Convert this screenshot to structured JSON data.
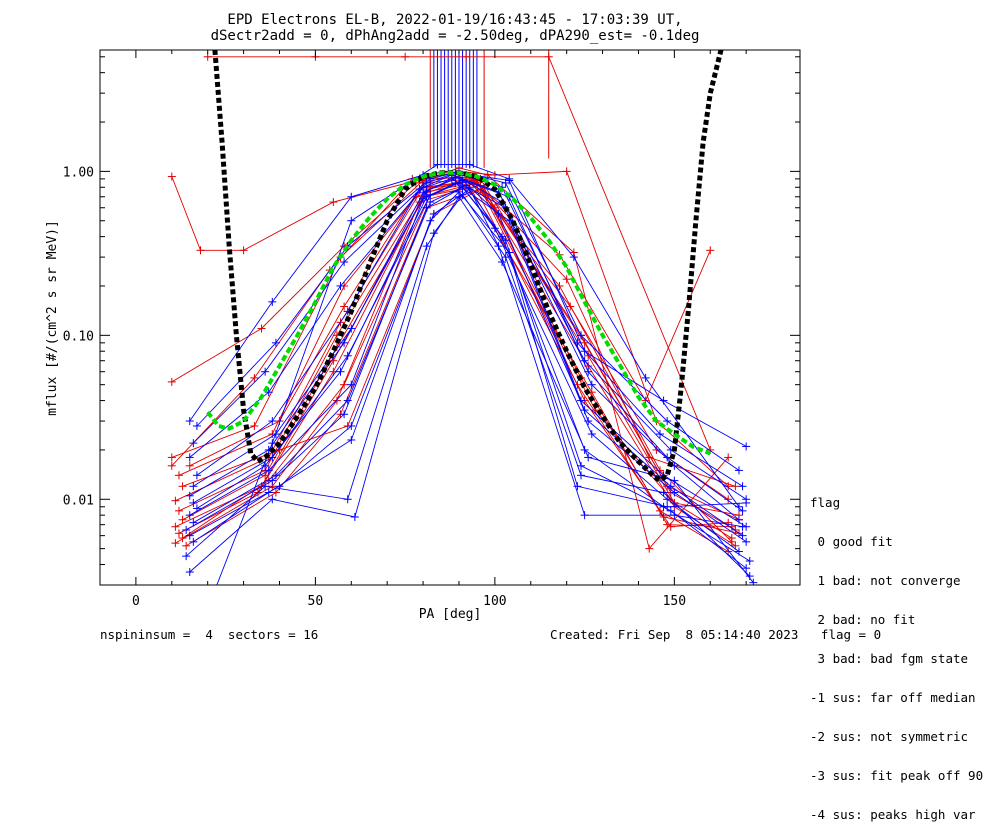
{
  "chart_data": {
    "type": "line",
    "title_line1": "EPD Electrons EL-B, 2022-01-19/16:43:45 - 17:03:39 UT,",
    "title_line2": "dSectr2add = 0, dPhAng2add = -2.50deg, dPA290_est=  -0.1deg",
    "xlabel": "PA [deg]",
    "ylabel": "mflux [#/(cm^2 s sr MeV)]",
    "xlim": [
      -10,
      185
    ],
    "ylim": [
      0.003,
      5.5
    ],
    "yscale": "log",
    "x_ticks": [
      0,
      50,
      100,
      150
    ],
    "x_tick_labels": [
      "0",
      "50",
      "100",
      "150"
    ],
    "y_ticks": [
      0.01,
      0.1,
      1.0
    ],
    "y_tick_labels": [
      "0.01",
      "0.10",
      "1.00"
    ],
    "series_colors": {
      "red": "#e00000",
      "blue": "#0000ff",
      "fit_black": "#000000",
      "fit_green": "#00dd00"
    },
    "fit_black": {
      "x": [
        22,
        24,
        26,
        28,
        30,
        32,
        34,
        36,
        40,
        45,
        50,
        55,
        60,
        65,
        70,
        75,
        80,
        85,
        90,
        95,
        100,
        105,
        110,
        115,
        120,
        125,
        130,
        135,
        140,
        144,
        146,
        148,
        150,
        152,
        154,
        156,
        158,
        160,
        163
      ],
      "y": [
        5.5,
        1.5,
        0.35,
        0.1,
        0.035,
        0.019,
        0.017,
        0.018,
        0.022,
        0.032,
        0.048,
        0.08,
        0.14,
        0.27,
        0.5,
        0.78,
        0.93,
        0.98,
        0.98,
        0.93,
        0.78,
        0.5,
        0.27,
        0.14,
        0.08,
        0.048,
        0.032,
        0.022,
        0.017,
        0.014,
        0.013,
        0.014,
        0.02,
        0.05,
        0.15,
        0.5,
        1.5,
        3.0,
        5.5
      ]
    },
    "fit_green": {
      "x": [
        20,
        23,
        26,
        30,
        35,
        40,
        45,
        50,
        55,
        60,
        65,
        70,
        75,
        80,
        85,
        90,
        95,
        100,
        105,
        110,
        115,
        120,
        125,
        130,
        135,
        140,
        145,
        150,
        155,
        160
      ],
      "y": [
        0.034,
        0.028,
        0.027,
        0.03,
        0.042,
        0.065,
        0.1,
        0.16,
        0.26,
        0.38,
        0.52,
        0.68,
        0.83,
        0.93,
        0.98,
        0.98,
        0.93,
        0.83,
        0.68,
        0.52,
        0.38,
        0.26,
        0.16,
        0.1,
        0.065,
        0.042,
        0.03,
        0.025,
        0.021,
        0.019
      ]
    },
    "spikes": {
      "blue_x": [
        83,
        84,
        85,
        86,
        87,
        88,
        89,
        90,
        91,
        92,
        93,
        94,
        95
      ],
      "red_x": [
        82,
        97
      ],
      "y_bottom": 1.05,
      "y_top": 5.5,
      "red_isolated": [
        {
          "x": 115,
          "y_bottom": 1.2,
          "y_top": 5.5
        }
      ]
    },
    "series": [
      {
        "color": "red",
        "x": [
          10,
          18,
          30,
          55,
          80,
          90,
          100,
          120,
          145,
          165
        ],
        "y": [
          0.93,
          0.33,
          0.33,
          0.65,
          0.9,
          1.0,
          0.95,
          1.0,
          0.03,
          0.012
        ]
      },
      {
        "color": "red",
        "x": [
          10,
          35,
          58,
          78,
          92,
          118,
          142,
          160
        ],
        "y": [
          0.052,
          0.11,
          0.35,
          0.85,
          0.95,
          0.31,
          0.04,
          0.33
        ]
      },
      {
        "color": "red",
        "x": [
          20,
          50,
          75,
          92,
          115,
          160
        ],
        "y": [
          5.0,
          5.0,
          5.0,
          5.0,
          5.0,
          0.02
        ]
      },
      {
        "color": "red",
        "x": [
          10,
          33,
          57,
          80,
          90,
          98,
          122,
          143,
          165
        ],
        "y": [
          0.018,
          0.028,
          0.3,
          0.88,
          1.05,
          0.95,
          0.32,
          0.005,
          0.018
        ]
      },
      {
        "color": "red",
        "x": [
          12,
          38,
          58,
          78,
          92,
          100,
          118,
          146,
          166
        ],
        "y": [
          0.014,
          0.025,
          0.2,
          0.7,
          0.9,
          0.6,
          0.2,
          0.015,
          0.0055
        ]
      },
      {
        "color": "red",
        "x": [
          11,
          37,
          57,
          80,
          95,
          124,
          148,
          168
        ],
        "y": [
          0.0098,
          0.018,
          0.12,
          0.8,
          0.88,
          0.1,
          0.012,
          0.0075
        ]
      },
      {
        "color": "red",
        "x": [
          12,
          36,
          56,
          81,
          95,
          125,
          149,
          167
        ],
        "y": [
          0.0085,
          0.015,
          0.1,
          0.78,
          0.88,
          0.09,
          0.011,
          0.0065
        ]
      },
      {
        "color": "red",
        "x": [
          13,
          36,
          56,
          82,
          96,
          126,
          150,
          166
        ],
        "y": [
          0.0075,
          0.014,
          0.085,
          0.8,
          0.9,
          0.075,
          0.0095,
          0.0058
        ]
      },
      {
        "color": "red",
        "x": [
          11,
          35,
          55,
          81,
          95,
          126,
          150,
          167
        ],
        "y": [
          0.0068,
          0.012,
          0.07,
          0.75,
          0.86,
          0.065,
          0.009,
          0.0052
        ]
      },
      {
        "color": "red",
        "x": [
          12,
          34,
          55,
          80,
          96,
          124,
          146,
          165
        ],
        "y": [
          0.0062,
          0.011,
          0.06,
          0.7,
          0.82,
          0.055,
          0.0085,
          0.0048
        ]
      },
      {
        "color": "red",
        "x": [
          13,
          37,
          58,
          82,
          94,
          123,
          147,
          168
        ],
        "y": [
          0.0058,
          0.013,
          0.05,
          0.72,
          0.84,
          0.05,
          0.0078,
          0.0062
        ]
      },
      {
        "color": "red",
        "x": [
          11,
          38,
          56,
          79,
          93,
          127,
          148,
          166
        ],
        "y": [
          0.0054,
          0.012,
          0.04,
          0.65,
          0.8,
          0.045,
          0.007,
          0.0068
        ]
      },
      {
        "color": "red",
        "x": [
          14,
          39,
          57,
          81,
          97,
          125,
          149,
          165
        ],
        "y": [
          0.0052,
          0.011,
          0.033,
          0.6,
          0.8,
          0.04,
          0.0068,
          0.0072
        ]
      },
      {
        "color": "red",
        "x": [
          13,
          40,
          59,
          83,
          96,
          128,
          150,
          168
        ],
        "y": [
          0.012,
          0.02,
          0.028,
          0.55,
          0.78,
          0.035,
          0.0095,
          0.008
        ]
      },
      {
        "color": "red",
        "x": [
          15,
          40,
          58,
          80,
          94,
          120,
          143,
          167
        ],
        "y": [
          0.016,
          0.03,
          0.15,
          0.85,
          0.9,
          0.22,
          0.018,
          0.012
        ]
      },
      {
        "color": "red",
        "x": [
          10,
          33,
          54,
          77,
          93,
          121,
          145,
          165
        ],
        "y": [
          0.016,
          0.055,
          0.25,
          0.9,
          0.92,
          0.15,
          0.02,
          0.01
        ]
      },
      {
        "color": "blue",
        "x": [
          15,
          38,
          60,
          80,
          87,
          104,
          125,
          147,
          170
        ],
        "y": [
          0.03,
          0.16,
          0.7,
          0.95,
          1.0,
          0.88,
          0.08,
          0.04,
          0.021
        ]
      },
      {
        "color": "blue",
        "x": [
          17,
          39,
          59,
          82,
          90,
          103,
          124,
          148,
          168
        ],
        "y": [
          0.028,
          0.09,
          0.35,
          0.9,
          1.0,
          0.85,
          0.1,
          0.03,
          0.015
        ]
      },
      {
        "color": "blue",
        "x": [
          16,
          36,
          58,
          81,
          89,
          102,
          123,
          146,
          169
        ],
        "y": [
          0.022,
          0.06,
          0.28,
          0.85,
          0.98,
          0.8,
          0.09,
          0.025,
          0.012
        ]
      },
      {
        "color": "blue",
        "x": [
          15,
          37,
          57,
          80,
          88,
          101,
          125,
          149,
          170
        ],
        "y": [
          0.018,
          0.045,
          0.2,
          0.8,
          0.95,
          0.75,
          0.07,
          0.02,
          0.01
        ]
      },
      {
        "color": "blue",
        "x": [
          17,
          38,
          59,
          79,
          89,
          104,
          126,
          148,
          169
        ],
        "y": [
          0.014,
          0.03,
          0.14,
          0.78,
          0.92,
          0.7,
          0.06,
          0.018,
          0.0085
        ]
      },
      {
        "color": "blue",
        "x": [
          16,
          39,
          60,
          81,
          90,
          102,
          127,
          150,
          168
        ],
        "y": [
          0.012,
          0.025,
          0.11,
          0.76,
          0.92,
          0.65,
          0.05,
          0.016,
          0.0075
        ]
      },
      {
        "color": "blue",
        "x": [
          15,
          37,
          58,
          80,
          88,
          103,
          124,
          147,
          170
        ],
        "y": [
          0.0105,
          0.02,
          0.09,
          0.74,
          0.9,
          0.6,
          0.04,
          0.014,
          0.0068
        ]
      },
      {
        "color": "blue",
        "x": [
          16,
          38,
          59,
          82,
          91,
          101,
          125,
          149,
          169
        ],
        "y": [
          0.0095,
          0.018,
          0.075,
          0.72,
          0.88,
          0.55,
          0.035,
          0.012,
          0.006
        ]
      },
      {
        "color": "blue",
        "x": [
          17,
          36,
          57,
          81,
          89,
          104,
          126,
          150,
          170
        ],
        "y": [
          0.0088,
          0.016,
          0.06,
          0.7,
          0.85,
          0.5,
          0.03,
          0.011,
          0.0055
        ]
      },
      {
        "color": "blue",
        "x": [
          15,
          37,
          60,
          80,
          90,
          100,
          127,
          148,
          168
        ],
        "y": [
          0.008,
          0.015,
          0.05,
          0.68,
          0.85,
          0.45,
          0.025,
          0.01,
          0.0048
        ]
      },
      {
        "color": "blue",
        "x": [
          16,
          39,
          59,
          82,
          92,
          102,
          125,
          147,
          171
        ],
        "y": [
          0.0072,
          0.014,
          0.04,
          0.65,
          0.82,
          0.4,
          0.02,
          0.009,
          0.0042
        ]
      },
      {
        "color": "blue",
        "x": [
          14,
          38,
          58,
          81,
          91,
          103,
          124,
          149,
          170
        ],
        "y": [
          0.0065,
          0.013,
          0.033,
          0.6,
          0.8,
          0.38,
          0.016,
          0.0085,
          0.0038
        ]
      },
      {
        "color": "blue",
        "x": [
          15,
          40,
          60,
          83,
          93,
          101,
          125,
          150,
          169
        ],
        "y": [
          0.006,
          0.012,
          0.028,
          0.55,
          0.78,
          0.35,
          0.008,
          0.008,
          0.0068
        ]
      },
      {
        "color": "blue",
        "x": [
          16,
          37,
          60,
          82,
          90,
          104,
          123,
          148,
          170
        ],
        "y": [
          0.0055,
          0.011,
          0.023,
          0.5,
          0.75,
          0.32,
          0.012,
          0.009,
          0.0095
        ]
      },
      {
        "color": "blue",
        "x": [
          15,
          38,
          61,
          83,
          91,
          103,
          124,
          147,
          171
        ],
        "y": [
          0.0036,
          0.01,
          0.0078,
          0.42,
          0.72,
          0.3,
          0.014,
          0.011,
          0.0034
        ]
      },
      {
        "color": "blue",
        "x": [
          14,
          36,
          59,
          81,
          90,
          102,
          126,
          150,
          172
        ],
        "y": [
          0.0045,
          0.012,
          0.01,
          0.35,
          0.7,
          0.28,
          0.018,
          0.013,
          0.0031
        ]
      },
      {
        "color": "blue",
        "x": [
          22,
          38,
          60,
          84,
          93,
          104,
          122,
          142,
          168
        ],
        "y": [
          0.0028,
          0.022,
          0.5,
          1.1,
          1.1,
          0.9,
          0.3,
          0.055,
          0.009
        ]
      }
    ]
  },
  "legend": {
    "title": "flag",
    "items": [
      " 0 good fit",
      " 1 bad: not converge",
      " 2 bad: no fit",
      " 3 bad: bad fgm state",
      "-1 sus: far off median",
      "-2 sus: not symmetric",
      "-3 sus: fit peak off 90",
      "-4 sus: peaks high var"
    ]
  },
  "footer": {
    "left": "nspininsum =  4  sectors = 16",
    "right": "Created: Fri Sep  8 05:14:40 2023   flag = 0"
  }
}
